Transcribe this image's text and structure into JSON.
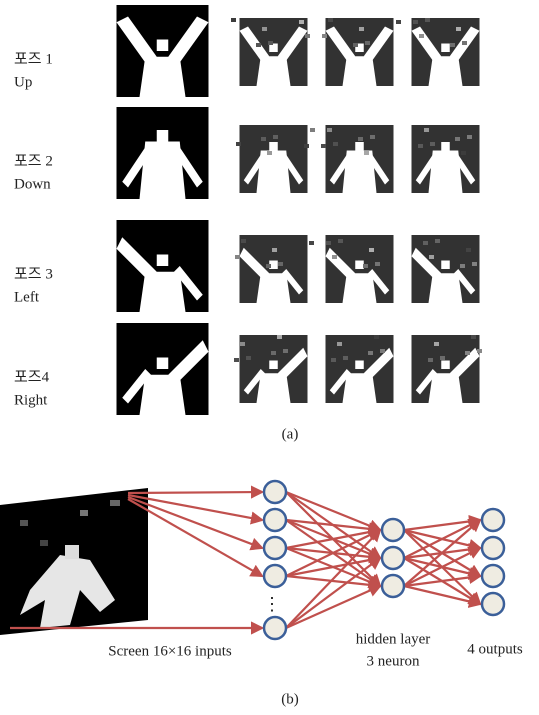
{
  "panel_a": {
    "poses": [
      {
        "name": "포즈 1",
        "direction": "Up"
      },
      {
        "name": "포즈 2",
        "direction": "Down"
      },
      {
        "name": "포즈 3",
        "direction": "Left"
      },
      {
        "name": "포즈4",
        "direction": "Right"
      }
    ],
    "caption": "(a)"
  },
  "panel_b": {
    "input_label": "Screen 16×16 inputs",
    "hidden_label": [
      "hidden layer",
      "3 neuron"
    ],
    "output_label": "4 outputs",
    "caption": "(b)"
  }
}
